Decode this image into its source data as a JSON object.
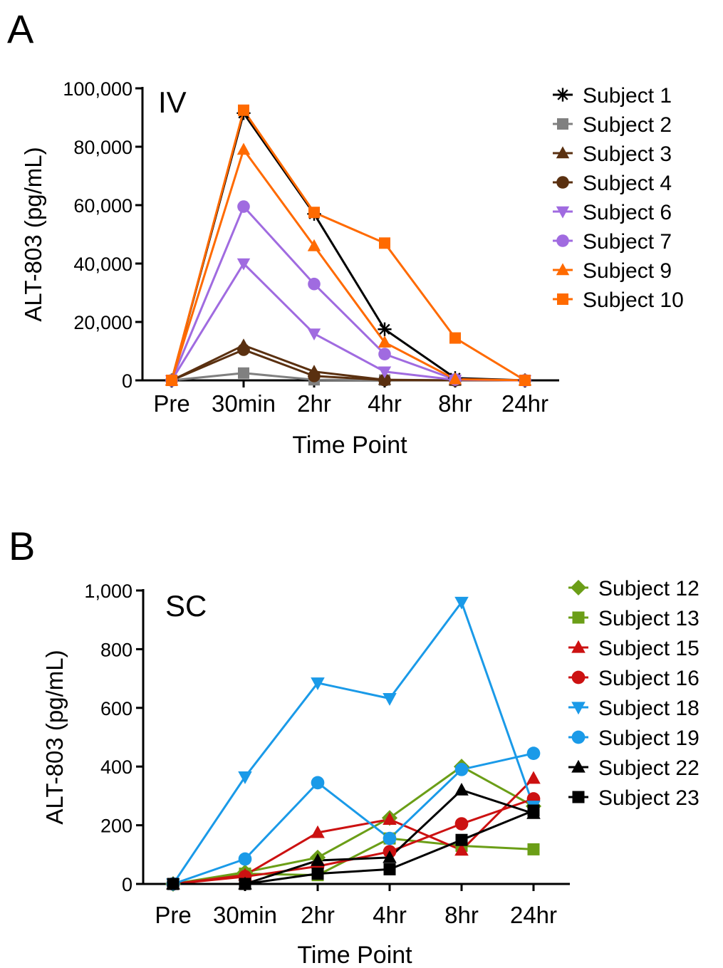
{
  "chart_data": [
    {
      "type": "line",
      "panel_label": "A",
      "annotation": "IV",
      "title": "",
      "xlabel": "Time Point",
      "ylabel": "ALT-803 (pg/mL)",
      "categories": [
        "Pre",
        "30min",
        "2hr",
        "4hr",
        "8hr",
        "24hr"
      ],
      "ylim": [
        0,
        100000
      ],
      "yticks": [
        0,
        20000,
        40000,
        60000,
        80000,
        100000
      ],
      "ytick_labels": [
        "0",
        "20,000",
        "40,000",
        "60,000",
        "80,000",
        "100,000"
      ],
      "legend_position": "right",
      "series": [
        {
          "name": "Subject 1",
          "color": "#000000",
          "marker": "asterisk",
          "values": [
            0,
            91500,
            57000,
            17500,
            800,
            0
          ]
        },
        {
          "name": "Subject 2",
          "color": "#808080",
          "marker": "square",
          "values": [
            0,
            2500,
            200,
            100,
            0,
            0
          ]
        },
        {
          "name": "Subject 3",
          "color": "#5a3010",
          "marker": "triangle-up",
          "values": [
            0,
            12000,
            3000,
            200,
            0,
            0
          ]
        },
        {
          "name": "Subject 4",
          "color": "#5a3010",
          "marker": "circle",
          "values": [
            0,
            10500,
            1500,
            100,
            0,
            0
          ]
        },
        {
          "name": "Subject 6",
          "color": "#a06be0",
          "marker": "triangle-down",
          "values": [
            0,
            40000,
            16000,
            3000,
            200,
            0
          ]
        },
        {
          "name": "Subject 7",
          "color": "#a06be0",
          "marker": "circle",
          "values": [
            0,
            59500,
            33000,
            9000,
            300,
            0
          ]
        },
        {
          "name": "Subject 9",
          "color": "#ff6a00",
          "marker": "triangle-up",
          "values": [
            0,
            79000,
            46000,
            13000,
            400,
            0
          ]
        },
        {
          "name": "Subject 10",
          "color": "#ff6a00",
          "marker": "square",
          "values": [
            0,
            92500,
            57500,
            47000,
            14500,
            0
          ]
        }
      ]
    },
    {
      "type": "line",
      "panel_label": "B",
      "annotation": "SC",
      "title": "",
      "xlabel": "Time Point",
      "ylabel": "ALT-803 (pg/mL)",
      "categories": [
        "Pre",
        "30min",
        "2hr",
        "4hr",
        "8hr",
        "24hr"
      ],
      "ylim": [
        0,
        1000
      ],
      "yticks": [
        0,
        200,
        400,
        600,
        800,
        1000
      ],
      "ytick_labels": [
        "0",
        "200",
        "400",
        "600",
        "800",
        "1,000"
      ],
      "legend_position": "right",
      "series": [
        {
          "name": "Subject 12",
          "color": "#6b9e17",
          "marker": "diamond",
          "values": [
            0,
            40,
            90,
            225,
            400,
            265
          ]
        },
        {
          "name": "Subject 13",
          "color": "#6b9e17",
          "marker": "square",
          "values": [
            0,
            35,
            30,
            155,
            130,
            118
          ]
        },
        {
          "name": "Subject 15",
          "color": "#cc1111",
          "marker": "triangle-up",
          "values": [
            0,
            30,
            175,
            220,
            115,
            360
          ]
        },
        {
          "name": "Subject 16",
          "color": "#cc1111",
          "marker": "circle",
          "values": [
            0,
            25,
            60,
            110,
            205,
            290
          ]
        },
        {
          "name": "Subject 18",
          "color": "#1a9ae8",
          "marker": "triangle-down",
          "values": [
            0,
            365,
            685,
            632,
            960,
            265
          ]
        },
        {
          "name": "Subject 19",
          "color": "#1a9ae8",
          "marker": "circle",
          "values": [
            0,
            85,
            345,
            155,
            390,
            445
          ]
        },
        {
          "name": "Subject 22",
          "color": "#000000",
          "marker": "triangle-up",
          "values": [
            0,
            0,
            80,
            90,
            320,
            240
          ]
        },
        {
          "name": "Subject 23",
          "color": "#000000",
          "marker": "square",
          "values": [
            0,
            0,
            35,
            50,
            150,
            250
          ]
        }
      ]
    }
  ]
}
